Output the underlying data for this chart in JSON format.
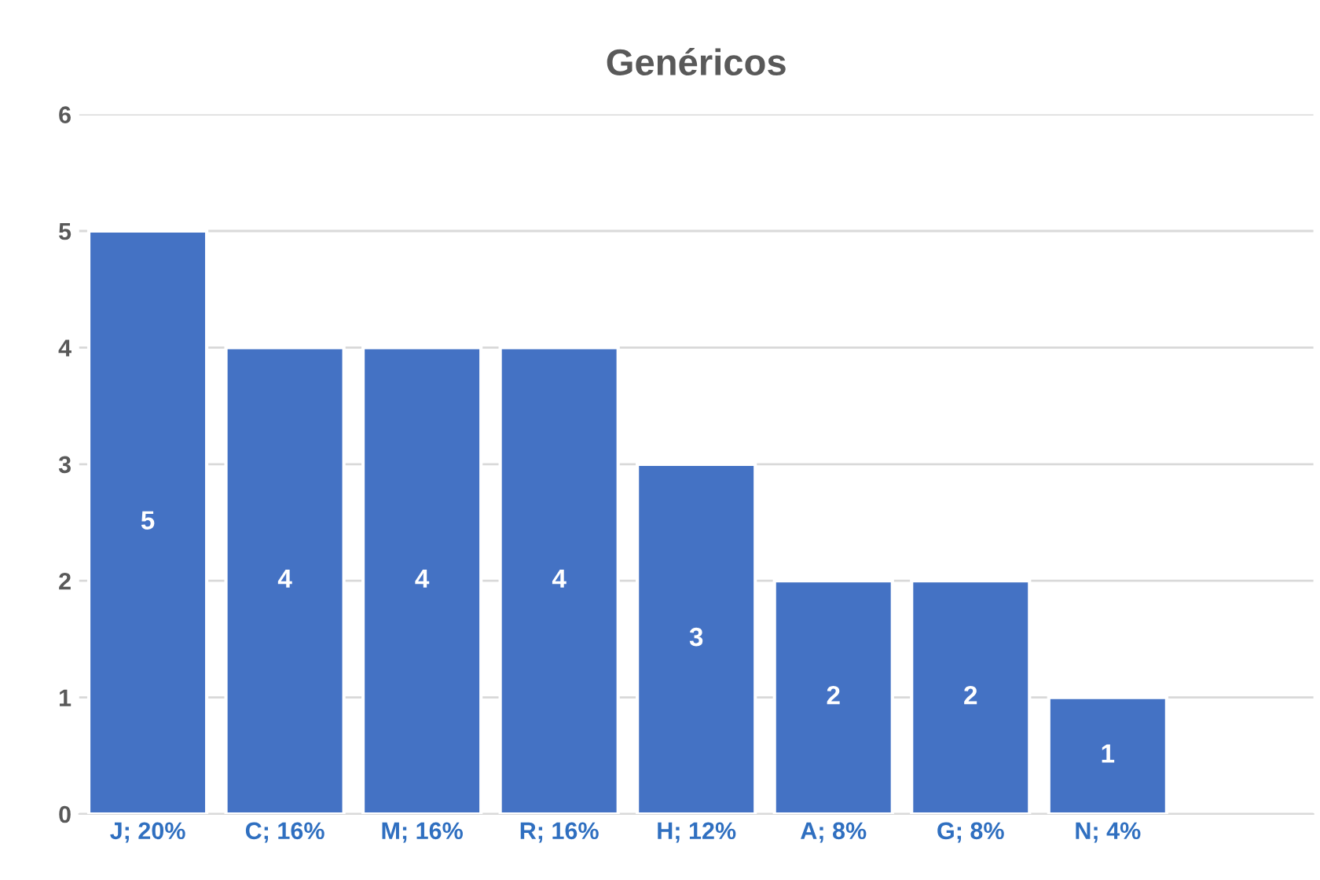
{
  "chart_data": {
    "type": "bar",
    "title": "Genéricos",
    "categories": [
      "J; 20%",
      "C; 16%",
      "M; 16%",
      "R; 16%",
      "H; 12%",
      "A; 8%",
      "G; 8%",
      "N; 4%",
      null
    ],
    "values": [
      5,
      4,
      4,
      4,
      3,
      2,
      2,
      1,
      null
    ],
    "color": "#4472c4",
    "ylim": [
      0,
      6
    ],
    "yticks": [
      0,
      1,
      2,
      3,
      4,
      5,
      6
    ],
    "grid": "y",
    "data_labels": true
  }
}
